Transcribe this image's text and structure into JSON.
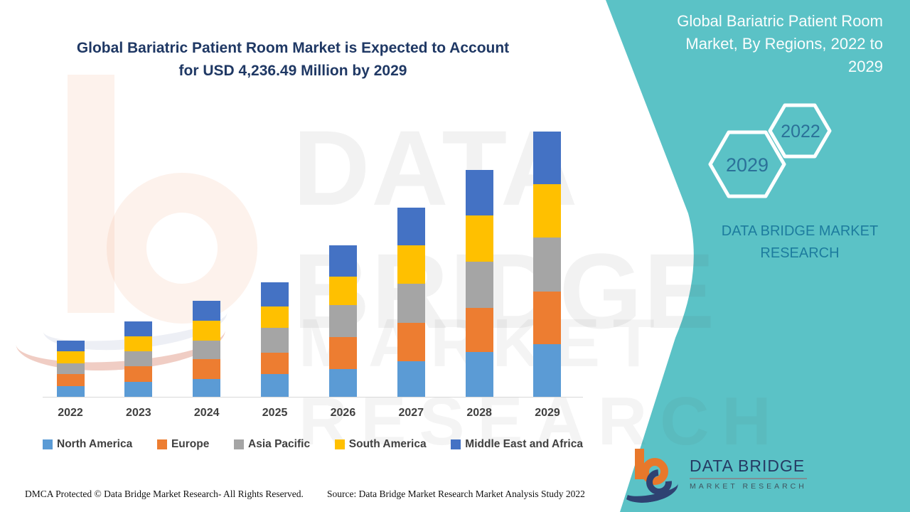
{
  "page": {
    "main_title": "Global Bariatric Patient Room Market is Expected to Account\nfor USD 4,236.49 Million by 2029",
    "panel_title": "Global Bariatric Patient Room\nMarket, By Regions, 2022 to\n2029",
    "hexagon_back_label": "2029",
    "hexagon_front_label": "2022",
    "brand_heading": "DATA BRIDGE MARKET\nRESEARCH",
    "logo": {
      "title": "DATA BRIDGE",
      "subtitle": "MARKET RESEARCH"
    },
    "footer_left": "DMCA Protected © Data Bridge Market Research- All Rights Reserved.",
    "footer_source": "Source: Data Bridge Market Research Market Analysis Study 2022",
    "watermark_line1": "DATA BRIDGE",
    "watermark_line2": "MARKET RESEARCH"
  },
  "colors": {
    "teal_panel": "#5BC2C6",
    "title_navy": "#1F3864",
    "hexagon_number": "#2B7199",
    "brand_heading_teal": "#1D7C9E",
    "axis_line": "#D9D9D9",
    "axis_label": "#3F3F3F",
    "legend_label": "#404040"
  },
  "chart_data": {
    "type": "bar",
    "stacked": true,
    "title": "Global Bariatric Patient Room Market, By Regions, 2022 to 2029",
    "unit": "USD Million",
    "xlabel": "",
    "ylabel": "",
    "grid": false,
    "y_axis_visible": false,
    "legend_position": "bottom",
    "categories": [
      "2022",
      "2023",
      "2024",
      "2025",
      "2026",
      "2027",
      "2028",
      "2029"
    ],
    "series": [
      {
        "name": "North America",
        "color": "#5B9BD5",
        "values": [
          170,
          239,
          284,
          363,
          443,
          568,
          716,
          840
        ]
      },
      {
        "name": "Europe",
        "color": "#ED7D31",
        "values": [
          193,
          250,
          318,
          341,
          511,
          613,
          704,
          840
        ]
      },
      {
        "name": "Asia Pacific",
        "color": "#A5A5A5",
        "values": [
          170,
          239,
          295,
          398,
          511,
          625,
          738,
          863
        ]
      },
      {
        "name": "South America",
        "color": "#FFC000",
        "values": [
          193,
          239,
          318,
          341,
          454,
          613,
          738,
          852
        ]
      },
      {
        "name": "Middle East and Africa",
        "color": "#4472C4",
        "values": [
          170,
          239,
          318,
          386,
          500,
          602,
          727,
          841.49
        ]
      }
    ],
    "approx_totals": [
      896,
      1206,
      1533,
      1829,
      2419,
      3021,
      3623,
      4236.49
    ],
    "highlight_total_2029": 4236.49
  }
}
